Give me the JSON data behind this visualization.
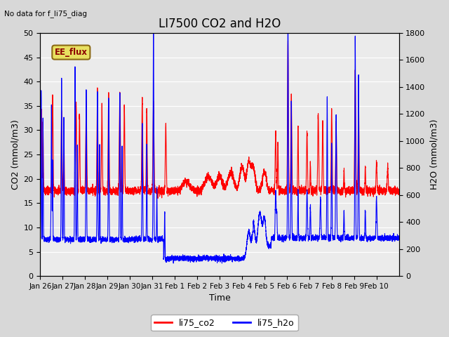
{
  "title": "LI7500 CO2 and H2O",
  "top_left_text": "No data for f_li75_diag",
  "xlabel": "Time",
  "ylabel_left": "CO2 (mmol/m3)",
  "ylabel_right": "H2O (mmol/m3)",
  "co2_color": "#ff0000",
  "h2o_color": "#0000ff",
  "co2_lw": 0.8,
  "h2o_lw": 0.8,
  "ylim_left": [
    0,
    50
  ],
  "ylim_right": [
    0,
    1800
  ],
  "yticks_left": [
    0,
    5,
    10,
    15,
    20,
    25,
    30,
    35,
    40,
    45,
    50
  ],
  "yticks_right": [
    0,
    200,
    400,
    600,
    800,
    1000,
    1200,
    1400,
    1600,
    1800
  ],
  "bg_color": "#d8d8d8",
  "plot_bg_color": "#ebebeb",
  "legend_labels": [
    "li75_co2",
    "li75_h2o"
  ],
  "ee_flux_label": "EE_flux",
  "title_fontsize": 12,
  "label_fontsize": 9,
  "tick_fontsize": 8,
  "tick_labels": [
    "Jan 26",
    "Jan 27",
    "Jan 28",
    "Jan 29",
    "Jan 30",
    "Jan 31",
    "Feb 1",
    "Feb 2",
    "Feb 3",
    "Feb 4",
    "Feb 5",
    "Feb 6",
    "Feb 7",
    "Feb 8",
    "Feb 9",
    "Feb 10"
  ]
}
